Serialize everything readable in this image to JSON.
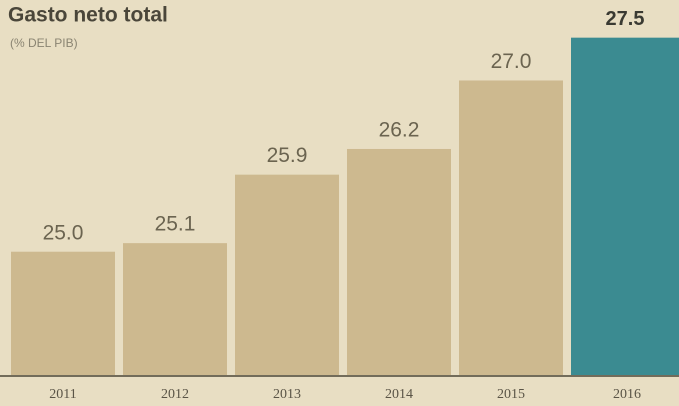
{
  "chart_data": {
    "type": "bar",
    "title": "Gasto neto total",
    "subtitle": "(% DEL PIB)",
    "categories": [
      "2011",
      "2012",
      "2013",
      "2014",
      "2015",
      "2016"
    ],
    "values": [
      25.0,
      25.1,
      25.9,
      26.2,
      27.0,
      27.5
    ],
    "value_labels": [
      "25.0",
      "25.1",
      "25.9",
      "26.2",
      "27.0",
      "27.5"
    ],
    "colors": [
      "#cdb98f",
      "#cdb98f",
      "#cdb98f",
      "#cdb98f",
      "#cdb98f",
      "#3b8b91"
    ],
    "ylim": [
      23.56,
      27.94
    ]
  }
}
